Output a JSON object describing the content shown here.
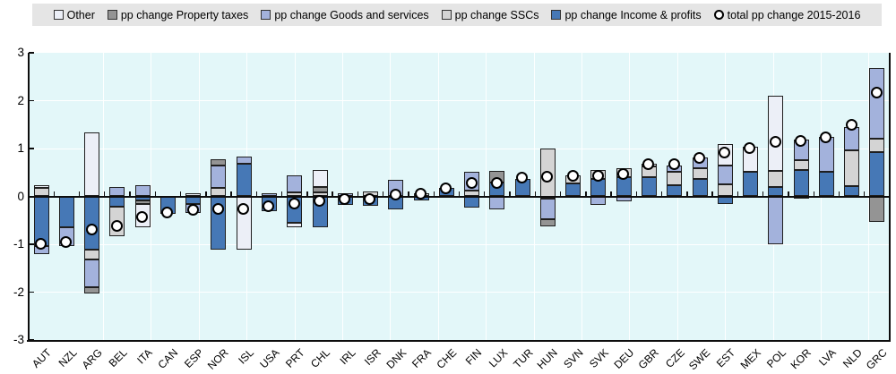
{
  "legend": {
    "items": [
      {
        "label": "Other",
        "type": "square",
        "color": "#eceff7"
      },
      {
        "label": "pp change Property taxes",
        "type": "square",
        "color": "#949494"
      },
      {
        "label": "pp change Goods and services",
        "type": "square",
        "color": "#a3b2dc"
      },
      {
        "label": "pp change SSCs",
        "type": "square",
        "color": "#d4d4d4"
      },
      {
        "label": "pp change Income & profits",
        "type": "square",
        "color": "#4678b6"
      },
      {
        "label": "total pp change 2015-2016",
        "type": "circle",
        "color": "#ffffff"
      }
    ]
  },
  "chart_data": {
    "type": "bar",
    "subtype": "stacked-bar-with-total-markers",
    "title": "",
    "xlabel": "",
    "ylabel": "",
    "ylim": [
      -3,
      3
    ],
    "yticks": [
      3,
      2,
      1,
      0,
      -1,
      -2,
      -3
    ],
    "grid": true,
    "plot_background": "#e3f7f9",
    "categories": [
      "AUT",
      "NZL",
      "ARG",
      "BEL",
      "ITA",
      "CAN",
      "ESP",
      "NOR",
      "ISL",
      "USA",
      "PRT",
      "CHL",
      "IRL",
      "ISR",
      "DNK",
      "FRA",
      "CHE",
      "FIN",
      "LUX",
      "TUR",
      "HUN",
      "SVN",
      "SVK",
      "DEU",
      "GBR",
      "CZE",
      "SWE",
      "EST",
      "MEX",
      "POL",
      "KOR",
      "LVA",
      "NLD",
      "GRC"
    ],
    "series": [
      {
        "key": "income",
        "name": "pp change Income & profits",
        "color": "#4678b6",
        "values": [
          -1.03,
          -0.65,
          -1.12,
          -0.21,
          -0.09,
          -0.37,
          -0.16,
          -1.12,
          0.69,
          -0.3,
          -0.56,
          -0.65,
          -0.17,
          -0.2,
          -0.28,
          -0.09,
          0.18,
          -0.23,
          0.29,
          0.36,
          -0.05,
          0.28,
          0.36,
          0.4,
          0.4,
          0.24,
          0.37,
          -0.16,
          0.52,
          0.19,
          0.56,
          0.51,
          0.22,
          0.93
        ]
      },
      {
        "key": "ssc",
        "name": "pp change SSCs",
        "color": "#d4d4d4",
        "values": [
          0.17,
          0,
          -0.19,
          -0.63,
          0,
          0,
          0,
          0.17,
          0,
          0,
          0.09,
          0.09,
          0,
          0.1,
          0,
          0.07,
          0,
          0.12,
          0,
          0,
          1.0,
          0.15,
          0.2,
          0.19,
          0.22,
          0.27,
          0.22,
          0.26,
          0,
          0.34,
          0.19,
          0,
          0.75,
          0.28
        ]
      },
      {
        "key": "goods",
        "name": "pp change Goods and services",
        "color": "#a3b2dc",
        "values": [
          -0.18,
          -0.38,
          -0.59,
          0.2,
          0.24,
          0,
          -0.18,
          0.48,
          0.15,
          0.06,
          0.35,
          0,
          0.07,
          0,
          0.34,
          0,
          0,
          0.4,
          -0.28,
          0,
          -0.43,
          0,
          -0.17,
          -0.11,
          0,
          0.14,
          0.22,
          0.39,
          0,
          -1.0,
          0.44,
          0.73,
          0.48,
          1.47
        ]
      },
      {
        "key": "property",
        "name": "pp change Property taxes",
        "color": "#949494",
        "values": [
          0,
          0,
          -0.13,
          0,
          -0.06,
          0,
          0,
          0.13,
          0,
          0,
          0,
          0.1,
          0,
          0,
          0,
          0,
          0,
          0,
          0.25,
          0,
          -0.15,
          0,
          0,
          0,
          0,
          0,
          0,
          0,
          0,
          0,
          -0.05,
          0,
          0,
          -0.53
        ]
      },
      {
        "key": "other",
        "name": "Other",
        "color": "#eceff7",
        "values": [
          0.07,
          0,
          1.33,
          0,
          -0.49,
          0,
          0.07,
          0,
          -1.12,
          0,
          -0.08,
          0.36,
          0,
          0,
          0,
          0,
          0,
          0,
          0,
          0,
          0,
          0,
          0,
          0,
          0.06,
          0,
          0,
          0.44,
          0.52,
          1.57,
          0,
          0,
          0,
          0
        ]
      }
    ],
    "totals": {
      "name": "total pp change 2015-2016",
      "marker_fill": "#ffffff",
      "marker_stroke": "#000000",
      "values": [
        -1.0,
        -0.97,
        -0.7,
        -0.62,
        -0.44,
        -0.35,
        -0.3,
        -0.28,
        -0.28,
        -0.22,
        -0.17,
        -0.1,
        -0.07,
        -0.06,
        0.03,
        0.04,
        0.15,
        0.27,
        0.26,
        0.39,
        0.4,
        0.41,
        0.41,
        0.46,
        0.66,
        0.67,
        0.8,
        0.9,
        1.0,
        1.12,
        1.15,
        1.23,
        1.48,
        2.15
      ]
    }
  }
}
